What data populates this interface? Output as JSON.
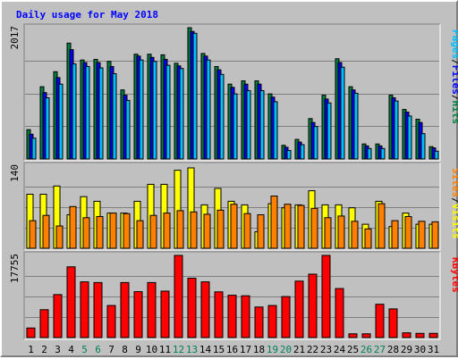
{
  "chart_data": {
    "type": "bar",
    "title": "Daily usage for May 2018",
    "categories": [
      "1",
      "2",
      "3",
      "4",
      "5",
      "6",
      "7",
      "8",
      "9",
      "10",
      "11",
      "12",
      "13",
      "14",
      "15",
      "16",
      "17",
      "18",
      "19",
      "20",
      "21",
      "22",
      "23",
      "24",
      "25",
      "26",
      "27",
      "28",
      "29",
      "30",
      "31"
    ],
    "weekend_days": [
      "5",
      "6",
      "12",
      "13",
      "19",
      "20",
      "26",
      "27"
    ],
    "panels": [
      {
        "name": "top",
        "max_label": "2017",
        "ylim": [
          0,
          2017
        ],
        "legend": [
          "Pages",
          "Files",
          "Hits"
        ],
        "series": [
          {
            "name": "Hits",
            "color": "#008040",
            "values": [
              450,
              1110,
              1340,
              1780,
              1520,
              1530,
              1500,
              1060,
              1610,
              1610,
              1600,
              1470,
              2017,
              1620,
              1420,
              1150,
              1200,
              1200,
              1000,
              210,
              300,
              620,
              980,
              1540,
              1110,
              230,
              230,
              980,
              760,
              610,
              190
            ]
          },
          {
            "name": "Files",
            "color": "#0000ff",
            "values": [
              380,
              1020,
              1250,
              1680,
              1480,
              1480,
              1420,
              980,
              1580,
              1560,
              1530,
              1430,
              1960,
              1580,
              1370,
              1100,
              1150,
              1150,
              950,
              180,
              260,
              560,
              920,
              1480,
              1060,
              200,
              200,
              940,
              720,
              560,
              170
            ]
          },
          {
            "name": "Pages",
            "color": "#00c0ff",
            "values": [
              320,
              940,
              1150,
              1460,
              1420,
              1400,
              1310,
              900,
              1520,
              1500,
              1440,
              1390,
              1930,
              1520,
              1300,
              1000,
              1050,
              1050,
              880,
              130,
              220,
              500,
              860,
              1410,
              1010,
              160,
              160,
              890,
              660,
              390,
              120
            ]
          }
        ]
      },
      {
        "name": "middle",
        "max_label": "140",
        "ylim": [
          0,
          140
        ],
        "legend": [
          "Sites",
          "Visits"
        ],
        "series": [
          {
            "name": "Visits",
            "color": "#ffff00",
            "values": [
              92,
              92,
              106,
              57,
              88,
              80,
              60,
              60,
              80,
              109,
              109,
              133,
              137,
              74,
              102,
              80,
              74,
              28,
              76,
              69,
              74,
              98,
              74,
              74,
              69,
              41,
              80,
              37,
              60,
              41,
              41
            ]
          },
          {
            "name": "Sites",
            "color": "#ff8000",
            "values": [
              47,
              56,
              38,
              71,
              52,
              54,
              60,
              59,
              47,
              56,
              60,
              64,
              62,
              58,
              65,
              75,
              59,
              57,
              89,
              75,
              73,
              68,
              52,
              55,
              46,
              33,
              76,
              47,
              54,
              46,
              45
            ]
          }
        ]
      },
      {
        "name": "bottom",
        "max_label": "17755",
        "ylim": [
          0,
          17755
        ],
        "legend": [
          "KBytes"
        ],
        "series": [
          {
            "name": "KBytes",
            "color": "#ff0000",
            "values": [
              2060,
              6020,
              9280,
              15280,
              12040,
              11880,
              6920,
              11880,
              9920,
              11880,
              10040,
              17755,
              12840,
              12040,
              9880,
              9150,
              9040,
              6600,
              6920,
              8860,
              12200,
              13700,
              17755,
              10600,
              820,
              820,
              7200,
              6200,
              1020,
              900,
              900
            ]
          }
        ]
      }
    ]
  }
}
